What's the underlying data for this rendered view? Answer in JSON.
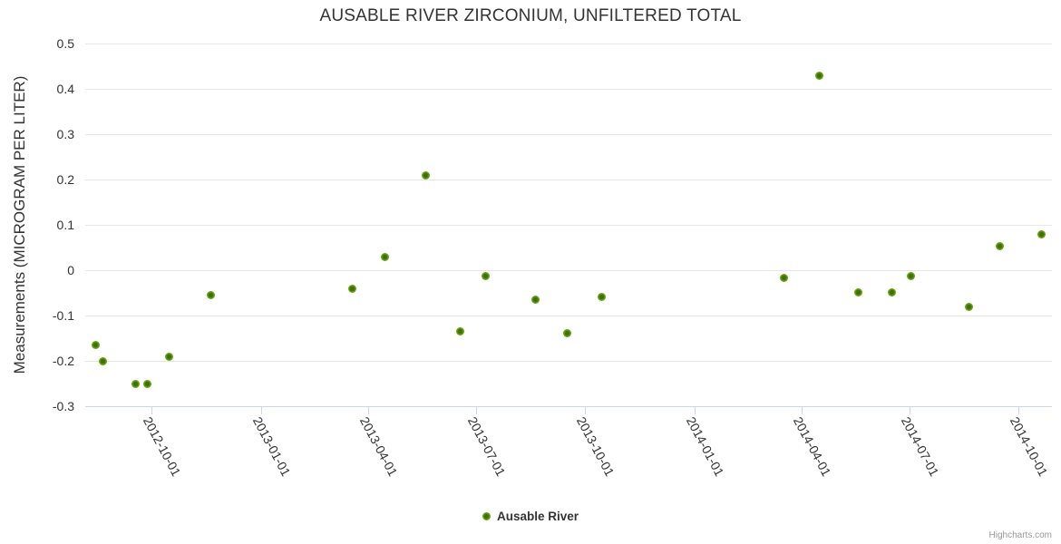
{
  "credits_text": "Highcharts.com",
  "legend": {
    "label": "Ausable River"
  },
  "colors": {
    "title_text": "#333333",
    "axis_label_text": "#333333",
    "gridline": "#e6e6e6",
    "axis_line": "#ccd6eb",
    "marker_outer": "#7bb71f",
    "marker_mid": "#64a410",
    "marker_inner": "#3e6e06",
    "credits_text": "#999999"
  },
  "chart_data": {
    "type": "scatter",
    "title": "AUSABLE RIVER ZIRCONIUM, UNFILTERED TOTAL",
    "xlabel": "",
    "ylabel": "Measurements (MICROGRAM PER LITER)",
    "legend_position": "bottom-center",
    "grid": "horizontal-only",
    "ylim": [
      -0.3,
      0.5
    ],
    "y_ticks": [
      0.5,
      0.4,
      0.3,
      0.2,
      0.1,
      0,
      -0.1,
      -0.2,
      -0.3
    ],
    "y_tick_labels": [
      "0.5",
      "0.4",
      "0.3",
      "0.2",
      "0.1",
      "0",
      "-0.1",
      "-0.2",
      "-0.3"
    ],
    "xlim": [
      "2012-08-06",
      "2014-10-29"
    ],
    "x_ticks": [
      "2012-10-01",
      "2013-01-01",
      "2013-04-01",
      "2013-07-01",
      "2013-10-01",
      "2014-01-01",
      "2014-04-01",
      "2014-07-01",
      "2014-10-01"
    ],
    "series": [
      {
        "name": "Ausable River",
        "points": [
          {
            "x": "2012-08-15",
            "y": -0.165
          },
          {
            "x": "2012-08-21",
            "y": -0.2
          },
          {
            "x": "2012-09-17",
            "y": -0.25
          },
          {
            "x": "2012-09-27",
            "y": -0.25
          },
          {
            "x": "2012-10-16",
            "y": -0.19
          },
          {
            "x": "2012-11-20",
            "y": -0.055
          },
          {
            "x": "2013-03-19",
            "y": -0.04
          },
          {
            "x": "2013-04-15",
            "y": 0.03
          },
          {
            "x": "2013-05-20",
            "y": 0.21
          },
          {
            "x": "2013-06-18",
            "y": -0.135
          },
          {
            "x": "2013-07-09",
            "y": -0.012
          },
          {
            "x": "2013-08-20",
            "y": -0.065
          },
          {
            "x": "2013-09-16",
            "y": -0.138
          },
          {
            "x": "2013-10-15",
            "y": -0.058
          },
          {
            "x": "2014-03-17",
            "y": -0.016
          },
          {
            "x": "2014-04-16",
            "y": 0.43
          },
          {
            "x": "2014-05-19",
            "y": -0.048
          },
          {
            "x": "2014-06-16",
            "y": -0.048
          },
          {
            "x": "2014-07-02",
            "y": -0.012
          },
          {
            "x": "2014-08-20",
            "y": -0.08
          },
          {
            "x": "2014-09-15",
            "y": 0.054
          },
          {
            "x": "2014-10-20",
            "y": 0.08
          }
        ]
      }
    ]
  }
}
